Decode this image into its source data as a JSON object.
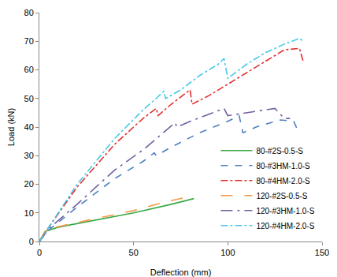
{
  "chart_data": {
    "type": "line",
    "x_label": "Deflection (mm)",
    "y_label": "Load (kN)",
    "xlim": [
      0,
      150
    ],
    "xticks": [
      0,
      50,
      100,
      150
    ],
    "ylim": [
      0,
      80
    ],
    "yticks": [
      0,
      10,
      20,
      30,
      40,
      50,
      60,
      70,
      80
    ],
    "grid": false,
    "legend": "lower right",
    "series": [
      {
        "name": "80-#2S-0.5-S",
        "color": "#3aa845",
        "line_style": "solid",
        "x": [
          0,
          3,
          10,
          30,
          50,
          70,
          82
        ],
        "values": [
          0,
          3.5,
          5,
          7.5,
          10,
          13,
          15
        ]
      },
      {
        "name": "80-#3HM-1.0-S",
        "color": "#4f81bd",
        "line_style": "dash",
        "x": [
          0,
          5,
          20,
          40,
          55,
          60,
          61,
          62,
          70,
          85,
          100,
          106,
          108,
          115,
          128,
          135,
          137
        ],
        "values": [
          0,
          4,
          12,
          22,
          28,
          30.5,
          31,
          30,
          33,
          38,
          42,
          44,
          38,
          40,
          42.5,
          42,
          39
        ]
      },
      {
        "name": "80-#4HM-2.0-S",
        "color": "#e03030",
        "line_style": "dashdot",
        "x": [
          0,
          5,
          20,
          40,
          55,
          62,
          63,
          70,
          80,
          81,
          90,
          100,
          110,
          120,
          130,
          138,
          140
        ],
        "values": [
          0,
          5,
          19,
          34,
          43,
          46.5,
          44,
          48,
          53,
          48,
          51,
          55,
          59,
          63,
          67,
          67.5,
          63
        ]
      },
      {
        "name": "120-#2S-0.5-S",
        "color": "#f79646",
        "line_style": "longdash",
        "x": [
          0,
          3,
          10,
          30,
          50,
          65,
          78
        ],
        "values": [
          0,
          3.7,
          5.2,
          8,
          10.8,
          13.5,
          15.5
        ]
      },
      {
        "name": "120-#3HM-1.0-S",
        "color": "#7060a0",
        "line_style": "longdashdot",
        "x": [
          0,
          5,
          20,
          40,
          55,
          62,
          72,
          73,
          80,
          90,
          98,
          100,
          110,
          125,
          130,
          133
        ],
        "values": [
          0,
          4.5,
          13,
          25,
          32,
          36,
          41.5,
          40,
          42,
          44.5,
          46.5,
          44,
          45,
          46.5,
          43,
          43
        ]
      },
      {
        "name": "120-#4HM-2.0-S",
        "color": "#4bc8e8",
        "line_style": "dashdot",
        "x": [
          0,
          5,
          20,
          40,
          55,
          62,
          66,
          67,
          75,
          85,
          95,
          98,
          99,
          100,
          110,
          120,
          130,
          138,
          140
        ],
        "values": [
          0,
          5,
          20,
          36,
          46,
          50,
          52.5,
          50,
          53,
          58,
          62,
          64,
          60,
          57,
          62,
          66,
          69,
          71,
          70
        ]
      }
    ]
  }
}
